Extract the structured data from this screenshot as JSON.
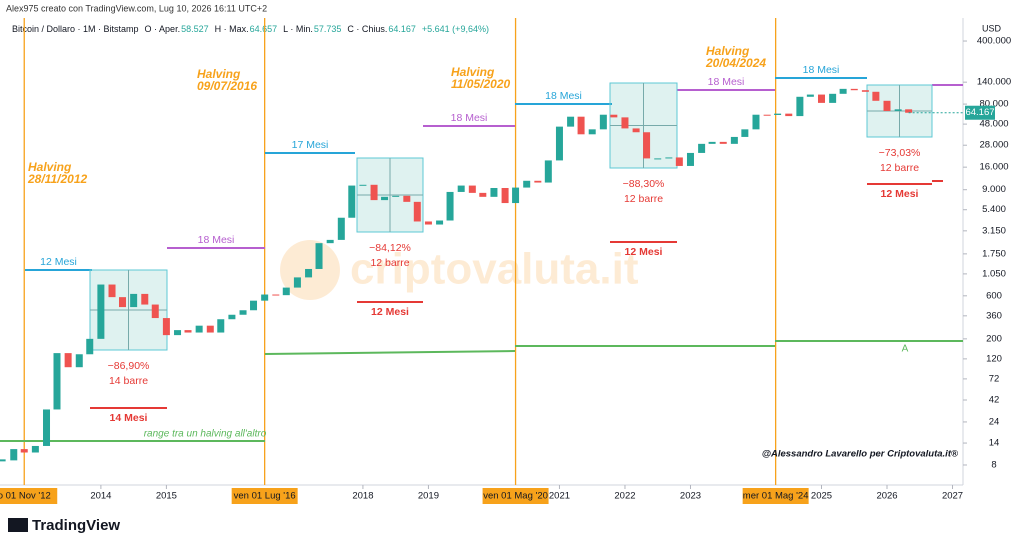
{
  "header": "Alex975 creato con TradingView.com, Lug 10, 2026 16:11 UTC+2",
  "brand": "TradingView",
  "chart_data": {
    "type": "candlestick",
    "title": "Bitcoin / Dollaro · 1M · Bitstamp",
    "ohlc_legend": [
      {
        "name": "O · Aper.",
        "value": "58.527"
      },
      {
        "name": "H · Max.",
        "value": "64.657"
      },
      {
        "name": "L · Min.",
        "value": "57.735"
      },
      {
        "name": "C · Chius.",
        "value": "64.167"
      }
    ],
    "change": "+5.641 (+9,64%)",
    "y_axis_label": "USD",
    "log_scale": true,
    "up_color": "#26a69a",
    "down_color": "#ef5350",
    "x": [
      2012.5,
      2012.67,
      2012.83,
      2013.0,
      2013.17,
      2013.33,
      2013.5,
      2013.67,
      2013.83,
      2014.0,
      2014.17,
      2014.33,
      2014.5,
      2014.67,
      2014.83,
      2015.0,
      2015.17,
      2015.33,
      2015.5,
      2015.67,
      2015.83,
      2016.0,
      2016.17,
      2016.33,
      2016.5,
      2016.67,
      2016.83,
      2017.0,
      2017.17,
      2017.33,
      2017.5,
      2017.67,
      2017.83,
      2018.0,
      2018.17,
      2018.33,
      2018.5,
      2018.67,
      2018.83,
      2019.0,
      2019.17,
      2019.33,
      2019.5,
      2019.67,
      2019.83,
      2020.0,
      2020.17,
      2020.33,
      2020.5,
      2020.67,
      2020.83,
      2021.0,
      2021.17,
      2021.33,
      2021.5,
      2021.67,
      2021.83,
      2022.0,
      2022.17,
      2022.33,
      2022.5,
      2022.67,
      2022.83,
      2023.0,
      2023.17,
      2023.33,
      2023.5,
      2023.67,
      2023.83,
      2024.0,
      2024.17,
      2024.33,
      2024.5,
      2024.67,
      2024.83,
      2025.0,
      2025.17,
      2025.33,
      2025.5,
      2025.67,
      2025.83,
      2026.0,
      2026.17,
      2026.33
    ],
    "values": [
      9,
      12,
      11,
      13,
      33,
      139,
      97,
      135,
      200,
      800,
      580,
      450,
      630,
      480,
      340,
      220,
      250,
      235,
      280,
      235,
      330,
      370,
      415,
      530,
      620,
      610,
      740,
      960,
      1190,
      2300,
      2500,
      4400,
      10000,
      10200,
      6900,
      7500,
      7700,
      6600,
      4000,
      3700,
      4100,
      8500,
      10000,
      8300,
      7500,
      9400,
      6400,
      9500,
      11300,
      10800,
      19000,
      45000,
      58000,
      37000,
      42000,
      61000,
      57000,
      43000,
      39000,
      20000,
      20000,
      20500,
      16500,
      23000,
      29000,
      30500,
      29000,
      34600,
      42000,
      61000,
      60600,
      62700,
      58900,
      96400,
      102000,
      82500,
      104000,
      118000,
      114000,
      109500,
      87000,
      67000,
      70000,
      64167
    ],
    "last_price": {
      "value": 64167,
      "label": "64.167"
    },
    "xlim": [
      2012.46,
      2027.16
    ],
    "ylim": [
      4.8,
      530000
    ],
    "xticks": [
      2014,
      2015,
      2018,
      2019,
      2021,
      2022,
      2023,
      2025,
      2026,
      2027
    ],
    "x_markers": [
      {
        "value": 2012.83,
        "label": "o 01 Nov '12"
      },
      {
        "value": 2016.5,
        "label": "ven 01 Lug '16"
      },
      {
        "value": 2020.33,
        "label": "ven 01 Mag '20"
      },
      {
        "value": 2024.3,
        "label": "mer 01 Mag '24"
      }
    ],
    "yticks": [
      {
        "value": 400000,
        "label": "400.000"
      },
      {
        "value": 140000,
        "label": "140.000"
      },
      {
        "value": 80000,
        "label": "80.000"
      },
      {
        "value": 48000,
        "label": "48.000"
      },
      {
        "value": 28000,
        "label": "28.000"
      },
      {
        "value": 16000,
        "label": "16.000"
      },
      {
        "value": 9000,
        "label": "9.000"
      },
      {
        "value": 5400,
        "label": "5.400"
      },
      {
        "value": 3150,
        "label": "3.150"
      },
      {
        "value": 1750,
        "label": "1.750"
      },
      {
        "value": 1050,
        "label": "1.050"
      },
      600,
      360,
      200,
      120,
      72,
      42,
      24,
      14,
      8
    ],
    "annotations": {
      "halvings": [
        {
          "title": "Halving",
          "date": "28/11/2012"
        },
        {
          "title": "Halving",
          "date": "09/07/2016"
        },
        {
          "title": "Halving",
          "date": "11/05/2020"
        },
        {
          "title": "Halving",
          "date": "20/04/2024"
        }
      ],
      "peak_ranges": [
        "12 Mesi",
        "17 Mesi",
        "18 Mesi",
        "18 Mesi"
      ],
      "accumulation_ranges": [
        "18 Mesi",
        "18 Mesi",
        "18 Mesi"
      ],
      "drawdowns": [
        {
          "change": "−86,90%",
          "bars": "14 barre"
        },
        {
          "change": "−84,12%",
          "bars": "12 barre"
        },
        {
          "change": "−88,30%",
          "bars": "12 barre"
        },
        {
          "change": "−73,03%",
          "bars": "12 barre"
        }
      ],
      "bear_ranges": [
        "14 Mesi",
        "12 Mesi",
        "12 Mesi",
        "12 Mesi"
      ],
      "halving_range_label": "range tra un halving all'altro",
      "marker": "A",
      "credit": "@Alessandro Lavarello per Criptovaluta.it®",
      "watermark": "criptovaluta.it"
    }
  }
}
